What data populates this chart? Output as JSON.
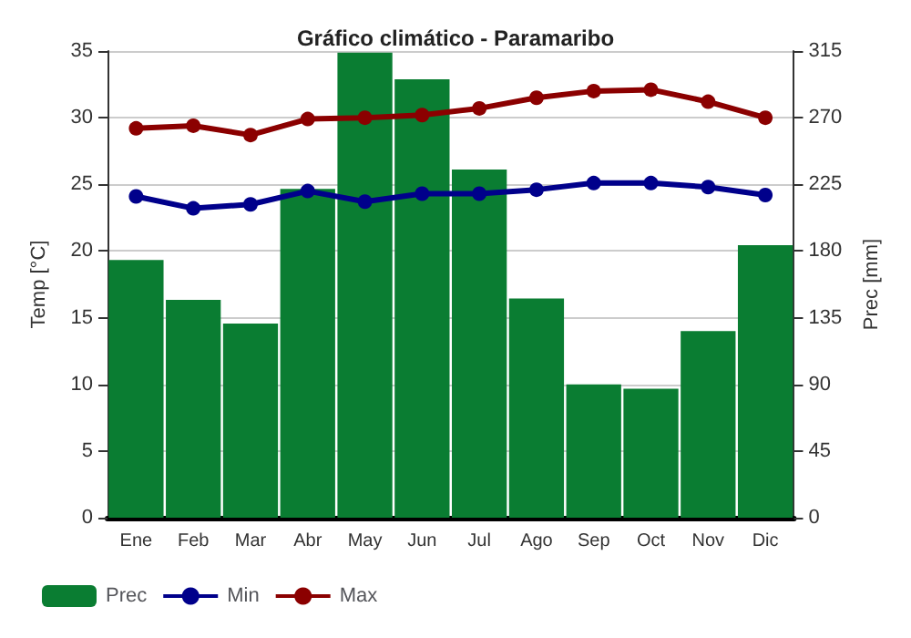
{
  "chart_data": {
    "type": "line",
    "title": "Gráfico climático - Paramaribo",
    "ylabel": "Temp [°C]",
    "y2label": "Prec [mm]",
    "categories": [
      "Ene",
      "Feb",
      "Mar",
      "Abr",
      "May",
      "Jun",
      "Jul",
      "Ago",
      "Sep",
      "Oct",
      "Nov",
      "Dic"
    ],
    "series": [
      {
        "name": "Prec",
        "type": "bar",
        "axis": "y2",
        "color": "#0a7d32",
        "values": [
          174,
          147,
          131,
          222,
          314,
          296,
          235,
          148,
          90,
          87,
          126,
          184
        ]
      },
      {
        "name": "Min",
        "color": "#00008b",
        "values": [
          24.1,
          23.2,
          23.5,
          24.5,
          23.7,
          24.3,
          24.3,
          24.6,
          25.1,
          25.1,
          24.8,
          24.2
        ]
      },
      {
        "name": "Max",
        "color": "#8b0000",
        "values": [
          29.2,
          29.4,
          28.7,
          29.9,
          30.0,
          30.2,
          30.7,
          31.5,
          32.0,
          32.1,
          31.2,
          30.0
        ]
      }
    ],
    "ylim": [
      0,
      35
    ],
    "yticks": [
      0,
      5,
      10,
      15,
      20,
      25,
      30,
      35
    ],
    "y2lim": [
      0,
      315
    ],
    "y2ticks": [
      0,
      45,
      90,
      135,
      180,
      225,
      270,
      315
    ],
    "grid": "y",
    "legend": "bottom",
    "marker": "circle",
    "line_style": "solid"
  }
}
